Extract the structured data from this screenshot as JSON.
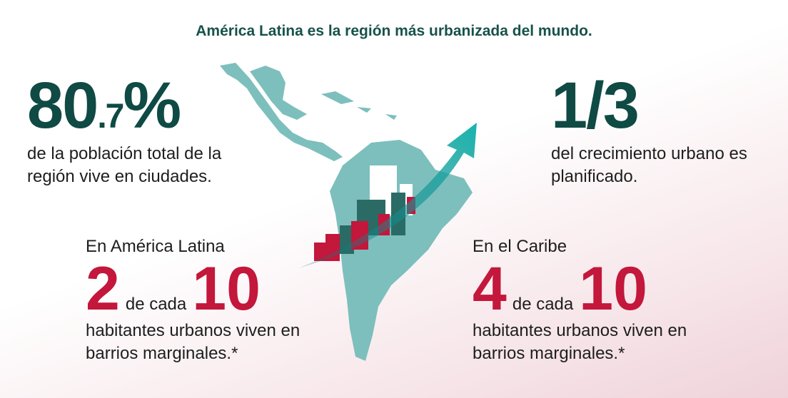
{
  "title": "América Latina es la región más urbanizada del mundo.",
  "stats": [
    {
      "main": "80",
      "decimal": ".7",
      "unit": "%",
      "description": "de la población total de la región vive en ciudades."
    },
    {
      "main": "1/3",
      "description": "del crecimiento urbano es planificado."
    },
    {
      "intro": "En América Latina",
      "number": "2",
      "connector": "de cada",
      "total": "10",
      "description": "habitantes urbanos viven en barrios marginales.*"
    },
    {
      "intro": "En el Caribe",
      "number": "4",
      "connector": "de cada",
      "total": "10",
      "description": "habitantes urbanos viven en barrios marginales.*"
    }
  ]
}
